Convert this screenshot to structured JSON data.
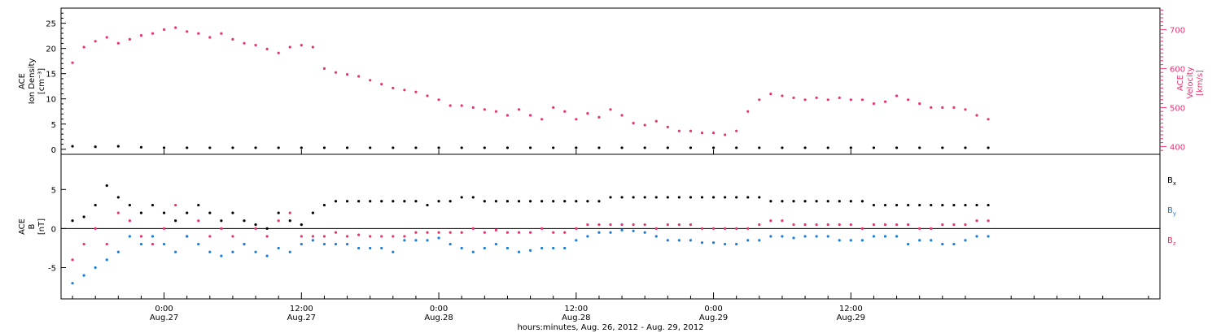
{
  "colors": {
    "axes": "#000000",
    "velocity": "#e8336e",
    "bx": "#000000",
    "by": "#1a7ed6",
    "bz": "#e8336e"
  },
  "chart_data": [
    {
      "type": "scatter",
      "panel": "top",
      "left_label": {
        "lines": [
          "ACE",
          "Ion Density",
          "[cm⁻³]"
        ]
      },
      "right_label": {
        "lines": [
          "ACE",
          "Velocity",
          "[km/s]"
        ]
      },
      "y_left": {
        "range": [
          -1,
          28
        ],
        "ticks": [
          0,
          5,
          10,
          15,
          20,
          25
        ]
      },
      "y_right": {
        "range": [
          380,
          755
        ],
        "ticks": [
          400,
          500,
          600,
          700
        ],
        "scale": "linear"
      },
      "series": [
        {
          "axis": "right",
          "x": [
            -8.0,
            -7.0,
            -6.0,
            -5.0,
            -4.0,
            -3.0,
            -2.0,
            -1.0,
            0.0,
            1.0,
            2.0,
            3.0,
            4.0,
            5.0,
            6.0,
            7.0,
            8.0,
            9.0,
            10.0,
            11.0,
            12.0,
            13.0,
            14.0,
            15.0,
            16.0,
            17.0,
            18.0,
            19.0,
            20.0,
            21.0,
            22.0,
            23.0,
            24.0,
            25.0,
            26.0,
            27.0,
            28.0,
            29.0,
            30.0,
            31.0,
            32.0,
            33.0,
            34.0,
            35.0,
            36.0,
            37.0,
            38.0,
            39.0,
            40.0,
            41.0,
            42.0,
            43.0,
            44.0,
            45.0,
            46.0,
            47.0,
            48.0,
            49.0,
            50.0,
            51.0,
            52.0,
            53.0,
            54.0,
            55.0,
            56.0,
            57.0,
            58.0,
            59.0,
            60.0,
            61.0,
            62.0,
            63.0,
            64.0,
            65.0,
            66.0,
            67.0,
            68.0,
            69.0,
            70.0,
            71.0,
            72.0
          ],
          "y": [
            615,
            655,
            670,
            680,
            665,
            675,
            685,
            690,
            700,
            705,
            695,
            690,
            680,
            690,
            675,
            665,
            660,
            650,
            640,
            655,
            660,
            655,
            600,
            590,
            585,
            580,
            570,
            560,
            550,
            545,
            540,
            530,
            520,
            505,
            505,
            500,
            495,
            490,
            480,
            495,
            480,
            470,
            500,
            490,
            470,
            485,
            475,
            495,
            480,
            460,
            455,
            465,
            450,
            440,
            440,
            435,
            435,
            430,
            440,
            490,
            520,
            535,
            530,
            525,
            520,
            525,
            520,
            525,
            520,
            520,
            510,
            515,
            530,
            520,
            510,
            500,
            500,
            500,
            495,
            480,
            470
          ],
          "marker": "dot"
        },
        {
          "axis": "left",
          "x": [
            -8.0,
            -6.0,
            -4.0,
            -2.0,
            0.0,
            2.0,
            4.0,
            6.0,
            8.0,
            10.0,
            12.0,
            14.0,
            16.0,
            18.0,
            20.0,
            22.0,
            24.0,
            26.0,
            28.0,
            30.0,
            32.0,
            34.0,
            36.0,
            38.0,
            40.0,
            42.0,
            44.0,
            46.0,
            48.0,
            50.0,
            52.0,
            54.0,
            56.0,
            58.0,
            60.0,
            62.0,
            64.0,
            66.0,
            68.0,
            70.0,
            72.0
          ],
          "y": [
            0.6,
            0.5,
            0.6,
            0.4,
            0.3,
            0.3,
            0.3,
            0.3,
            0.3,
            0.3,
            0.3,
            0.3,
            0.3,
            0.3,
            0.3,
            0.3,
            0.3,
            0.3,
            0.3,
            0.3,
            0.3,
            0.3,
            0.3,
            0.3,
            0.3,
            0.3,
            0.3,
            0.3,
            0.3,
            0.3,
            0.3,
            0.3,
            0.3,
            0.3,
            0.3,
            0.3,
            0.3,
            0.3,
            0.3,
            0.3,
            0.3
          ],
          "marker": "dot"
        }
      ]
    },
    {
      "type": "scatter",
      "panel": "bottom",
      "left_label": {
        "lines": [
          "ACE",
          "B",
          "[nT]"
        ]
      },
      "y_left": {
        "range": [
          -9,
          9.5
        ],
        "ticks": [
          -5,
          0,
          5
        ]
      },
      "legend": [
        {
          "label": "B",
          "sub": "x"
        },
        {
          "label": "B",
          "sub": "y"
        },
        {
          "label": "B",
          "sub": "z"
        }
      ],
      "series": [
        {
          "name": "Bx",
          "x": [
            -8.0,
            -7.0,
            -6.0,
            -5.0,
            -4.0,
            -3.0,
            -2.0,
            -1.0,
            0.0,
            1.0,
            2.0,
            3.0,
            4.0,
            5.0,
            6.0,
            7.0,
            8.0,
            9.0,
            10.0,
            11.0,
            12.0,
            13.0,
            14.0,
            15.0,
            16.0,
            17.0,
            18.0,
            19.0,
            20.0,
            21.0,
            22.0,
            23.0,
            24.0,
            25.0,
            26.0,
            27.0,
            28.0,
            29.0,
            30.0,
            31.0,
            32.0,
            33.0,
            34.0,
            35.0,
            36.0,
            37.0,
            38.0,
            39.0,
            40.0,
            41.0,
            42.0,
            43.0,
            44.0,
            45.0,
            46.0,
            47.0,
            48.0,
            49.0,
            50.0,
            51.0,
            52.0,
            53.0,
            54.0,
            55.0,
            56.0,
            57.0,
            58.0,
            59.0,
            60.0,
            61.0,
            62.0,
            63.0,
            64.0,
            65.0,
            66.0,
            67.0,
            68.0,
            69.0,
            70.0,
            71.0,
            72.0
          ],
          "y": [
            1,
            1.5,
            3,
            5.5,
            4,
            3,
            2,
            3,
            2,
            1,
            2,
            3,
            2,
            1,
            2,
            1,
            0.5,
            0,
            2,
            1,
            0.5,
            2,
            3,
            3.5,
            3.5,
            3.5,
            3.5,
            3.5,
            3.5,
            3.5,
            3.5,
            3,
            3.5,
            3.5,
            4,
            4,
            3.5,
            3.5,
            3.5,
            3.5,
            3.5,
            3.5,
            3.5,
            3.5,
            3.5,
            3.5,
            3.5,
            4,
            4,
            4,
            4,
            4,
            4,
            4,
            4,
            4,
            4,
            4,
            4,
            4,
            4,
            3.5,
            3.5,
            3.5,
            3.5,
            3.5,
            3.5,
            3.5,
            3.5,
            3.5,
            3,
            3,
            3,
            3,
            3,
            3,
            3,
            3,
            3,
            3,
            3
          ],
          "marker": "dot"
        },
        {
          "name": "By",
          "x": [
            -8.0,
            -7.0,
            -6.0,
            -5.0,
            -4.0,
            -3.0,
            -2.0,
            -1.0,
            0.0,
            1.0,
            2.0,
            3.0,
            4.0,
            5.0,
            6.0,
            7.0,
            8.0,
            9.0,
            10.0,
            11.0,
            12.0,
            13.0,
            14.0,
            15.0,
            16.0,
            17.0,
            18.0,
            19.0,
            20.0,
            21.0,
            22.0,
            23.0,
            24.0,
            25.0,
            26.0,
            27.0,
            28.0,
            29.0,
            30.0,
            31.0,
            32.0,
            33.0,
            34.0,
            35.0,
            36.0,
            37.0,
            38.0,
            39.0,
            40.0,
            41.0,
            42.0,
            43.0,
            44.0,
            45.0,
            46.0,
            47.0,
            48.0,
            49.0,
            50.0,
            51.0,
            52.0,
            53.0,
            54.0,
            55.0,
            56.0,
            57.0,
            58.0,
            59.0,
            60.0,
            61.0,
            62.0,
            63.0,
            64.0,
            65.0,
            66.0,
            67.0,
            68.0,
            69.0,
            70.0,
            71.0,
            72.0
          ],
          "y": [
            -7,
            -6,
            -5,
            -4,
            -3,
            -1,
            -2,
            -1,
            -2,
            -3,
            -1,
            -2,
            -3,
            -3.5,
            -3,
            -2,
            -3,
            -3.5,
            -2.5,
            -3,
            -2,
            -1.5,
            -2,
            -2,
            -2,
            -2.5,
            -2.5,
            -2.5,
            -3,
            -1.5,
            -1.5,
            -1.5,
            -1.2,
            -2,
            -2.5,
            -3,
            -2.5,
            -2,
            -2.5,
            -3,
            -2.8,
            -2.5,
            -2.5,
            -2.5,
            -1.5,
            -1,
            -0.5,
            -0.5,
            -0.2,
            -0.3,
            -0.5,
            -1,
            -1.5,
            -1.5,
            -1.5,
            -1.8,
            -1.8,
            -2,
            -2,
            -1.5,
            -1.5,
            -1,
            -1,
            -1.2,
            -1,
            -1,
            -1,
            -1.5,
            -1.5,
            -1.5,
            -1,
            -1,
            -1,
            -2,
            -1.5,
            -1.5,
            -2,
            -2,
            -1.5,
            -1,
            -1
          ],
          "marker": "dot"
        },
        {
          "name": "Bz",
          "x": [
            -8.0,
            -7.0,
            -6.0,
            -5.0,
            -4.0,
            -3.0,
            -2.0,
            -1.0,
            0.0,
            1.0,
            2.0,
            3.0,
            4.0,
            5.0,
            6.0,
            7.0,
            8.0,
            9.0,
            10.0,
            11.0,
            12.0,
            13.0,
            14.0,
            15.0,
            16.0,
            17.0,
            18.0,
            19.0,
            20.0,
            21.0,
            22.0,
            23.0,
            24.0,
            25.0,
            26.0,
            27.0,
            28.0,
            29.0,
            30.0,
            31.0,
            32.0,
            33.0,
            34.0,
            35.0,
            36.0,
            37.0,
            38.0,
            39.0,
            40.0,
            41.0,
            42.0,
            43.0,
            44.0,
            45.0,
            46.0,
            47.0,
            48.0,
            49.0,
            50.0,
            51.0,
            52.0,
            53.0,
            54.0,
            55.0,
            56.0,
            57.0,
            58.0,
            59.0,
            60.0,
            61.0,
            62.0,
            63.0,
            64.0,
            65.0,
            66.0,
            67.0,
            68.0,
            69.0,
            70.0,
            71.0,
            72.0
          ],
          "y": [
            -4,
            -2,
            0,
            -2,
            2,
            1,
            -1,
            -2,
            0,
            3,
            -1,
            1,
            -1,
            0,
            -1,
            -2,
            0,
            -1,
            1,
            2,
            -1,
            -1,
            -1,
            -0.5,
            -1,
            -0.8,
            -1,
            -1,
            -1,
            -1,
            -0.5,
            -0.5,
            -0.5,
            -0.5,
            -0.5,
            0,
            -0.5,
            -0.2,
            -0.5,
            -0.5,
            -0.5,
            0,
            -0.5,
            -0.5,
            0,
            0.5,
            0.5,
            0.5,
            0.5,
            0.5,
            0.5,
            0,
            0.5,
            0.5,
            0.5,
            0,
            0,
            0,
            0,
            0,
            0.5,
            1,
            1,
            0.5,
            0.5,
            0.5,
            0.5,
            0.5,
            0.5,
            0,
            0.5,
            0.5,
            0.5,
            0.5,
            0,
            0,
            0.5,
            0.5,
            0.5,
            1,
            1
          ],
          "marker": "dot"
        }
      ]
    }
  ],
  "x_axis": {
    "range_hours": [
      -9,
      87
    ],
    "ticks": [
      {
        "x": 0,
        "time": "0:00",
        "date": "Aug.27"
      },
      {
        "x": 12,
        "time": "12:00",
        "date": "Aug.27"
      },
      {
        "x": 24,
        "time": "0:00",
        "date": "Aug.28"
      },
      {
        "x": 36,
        "time": "12:00",
        "date": "Aug.28"
      },
      {
        "x": 48,
        "time": "0:00",
        "date": "Aug.29"
      },
      {
        "x": 60,
        "time": "12:00",
        "date": "Aug.29"
      }
    ],
    "caption": "hours:minutes, Aug. 26, 2012 - Aug. 29, 2012"
  }
}
